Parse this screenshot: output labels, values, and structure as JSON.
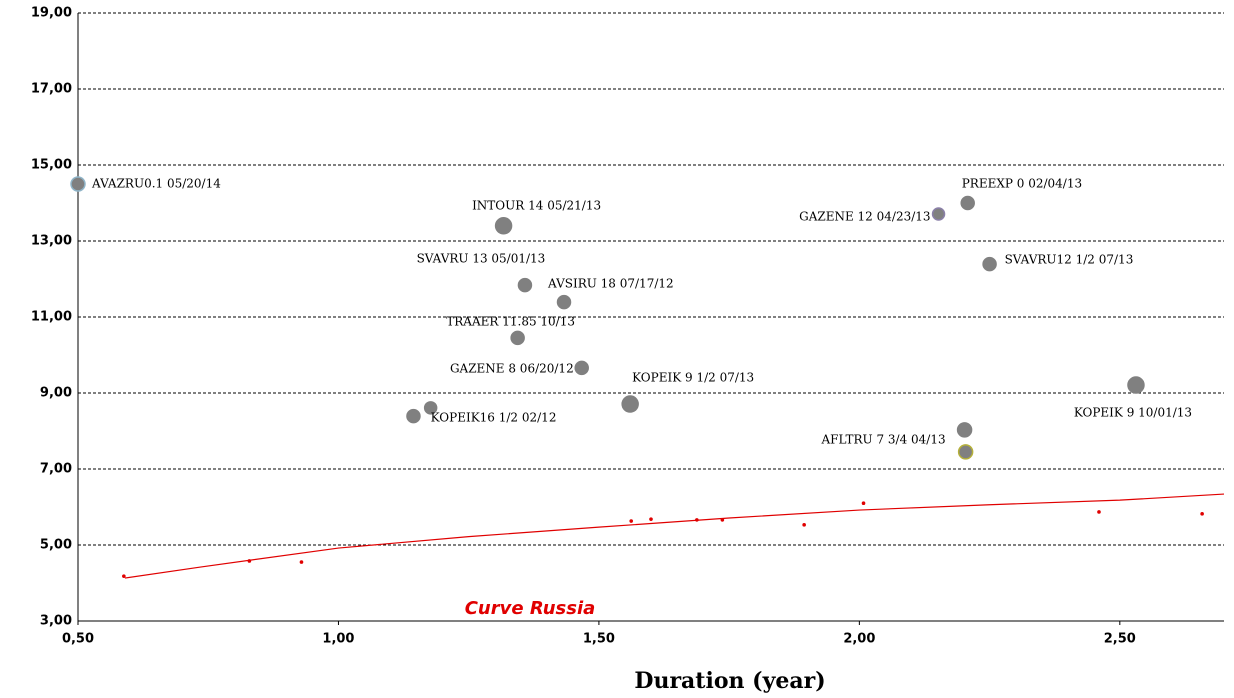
{
  "chart_data": {
    "type": "scatter",
    "x_label": "Duration (year)",
    "xlim": [
      0.5,
      2.7
    ],
    "ylim": [
      3,
      19
    ],
    "xticks": [
      {
        "value": 0.5,
        "label": "0,50"
      },
      {
        "value": 1,
        "label": "1,00"
      },
      {
        "value": 1.5,
        "label": "1,50"
      },
      {
        "value": 2,
        "label": "2,00"
      },
      {
        "value": 2.5,
        "label": "2,50"
      }
    ],
    "yticks": [
      {
        "value": 3,
        "label": "3,00"
      },
      {
        "value": 5,
        "label": "5,00"
      },
      {
        "value": 7,
        "label": "7,00"
      },
      {
        "value": 9,
        "label": "9,00"
      },
      {
        "value": 11,
        "label": "11,00"
      },
      {
        "value": 13,
        "label": "13,00"
      },
      {
        "value": 15,
        "label": "15,00"
      },
      {
        "value": 17,
        "label": "17,00"
      },
      {
        "value": 19,
        "label": "19,00"
      }
    ],
    "grid": true,
    "bubbles": {
      "color": "#808080",
      "labels": [
        "AVAZRU0.1 05/20/14",
        "INTOUR 14 05/21/13",
        "GAZENE 12 04/23/13",
        "PREEXP 0 02/04/13",
        "SVAVRU12 1/2 07/13",
        "SVAVRU 13 05/01/13",
        "AVSIRU 18 07/17/12",
        "TRAAER 11.85 10/13",
        "GAZENE 8 06/20/12",
        "KOPEIK 9 1/2 07/13",
        "KOPEIK 9 10/01/13",
        "KOPEIK16 1/2 02/12",
        null,
        "AFLTRU 7 3/4 04/13",
        null
      ],
      "x": [
        0.5,
        1.317,
        2.152,
        2.208,
        2.25,
        1.358,
        1.433,
        1.344,
        1.467,
        1.56,
        2.531,
        1.177,
        1.144,
        2.204,
        2.202
      ],
      "values": [
        14.5,
        13.4,
        13.71,
        14.0,
        12.39,
        11.84,
        11.39,
        10.45,
        9.66,
        8.71,
        9.21,
        8.61,
        8.39,
        7.45,
        8.03
      ],
      "sizes": [
        7,
        8,
        6,
        6.5,
        6.5,
        6.5,
        6.5,
        6.5,
        6.5,
        8,
        8,
        6,
        6.5,
        7,
        7
      ],
      "edge_colors": [
        "#8fb4c8",
        "#808080",
        "#8a7fa8",
        "#808080",
        "#808080",
        "#808080",
        "#808080",
        "#808080",
        "#808080",
        "#808080",
        "#808080",
        "#808080",
        "#808080",
        "#b5b03a",
        "#808080"
      ]
    },
    "curve_points": {
      "color": "#e00000",
      "x": [
        0.588,
        0.829,
        0.929,
        1.562,
        1.6,
        1.688,
        1.737,
        1.894,
        2.008,
        2.46,
        2.658
      ],
      "values": [
        4.18,
        4.58,
        4.55,
        5.63,
        5.68,
        5.66,
        5.66,
        5.53,
        6.1,
        5.87,
        5.82
      ]
    },
    "curve": {
      "name": "Curve Russia",
      "color": "#e00000",
      "x": [
        0.59,
        0.735,
        1.0,
        1.25,
        1.5,
        1.75,
        2.0,
        2.25,
        2.5,
        2.7
      ],
      "values": [
        4.13,
        4.42,
        4.92,
        5.22,
        5.47,
        5.71,
        5.92,
        6.06,
        6.18,
        6.34
      ]
    }
  }
}
